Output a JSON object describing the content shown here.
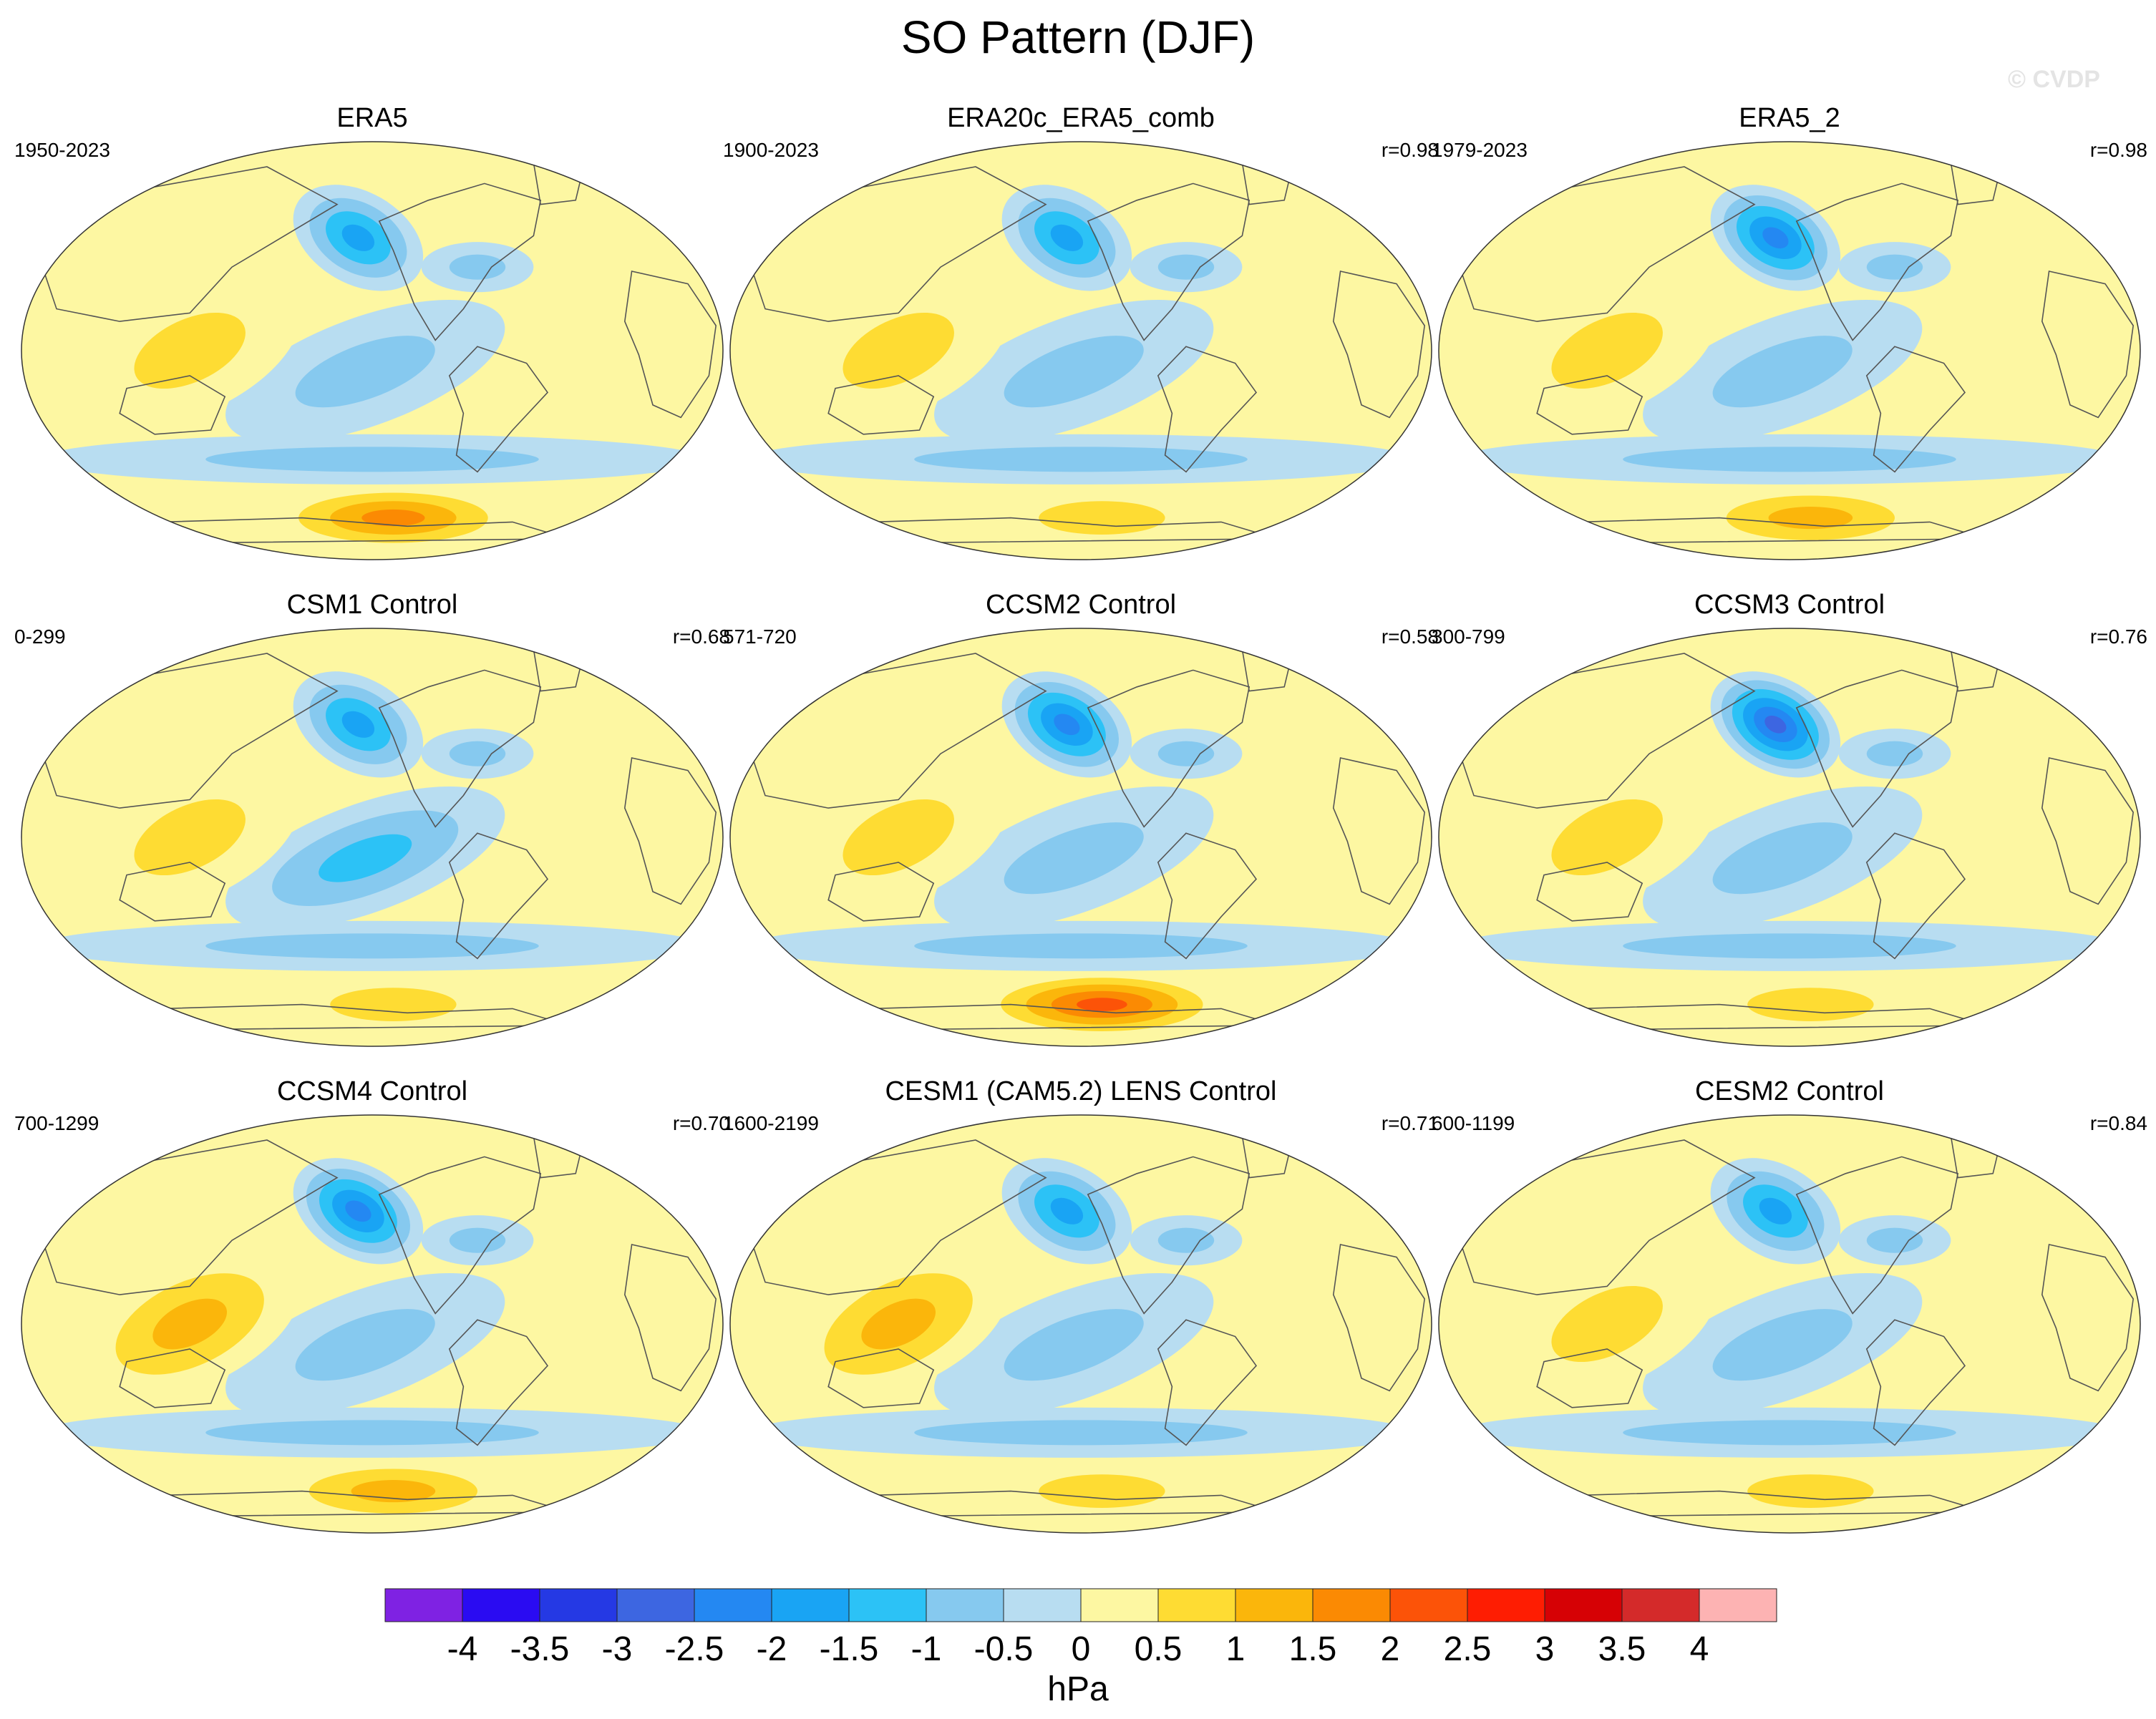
{
  "title": "SO Pattern (DJF)",
  "copyright": "© CVDP",
  "panels": [
    {
      "title": "ERA5",
      "period": "1950-2023",
      "r": "",
      "anomaly": {
        "north_pacific": -2.0,
        "eq_pacific": -1.0,
        "maritime": 1.0,
        "antarctic": 2.0,
        "atlantic": 0.5
      }
    },
    {
      "title": "ERA20c_ERA5_comb",
      "period": "1900-2023",
      "r": "r=0.98",
      "anomaly": {
        "north_pacific": -2.0,
        "eq_pacific": -1.0,
        "maritime": 1.0,
        "antarctic": 1.0,
        "atlantic": 0.5
      }
    },
    {
      "title": "ERA5_2",
      "period": "1979-2023",
      "r": "r=0.98",
      "anomaly": {
        "north_pacific": -2.5,
        "eq_pacific": -1.0,
        "maritime": 1.0,
        "antarctic": 1.5,
        "atlantic": 0.5
      }
    },
    {
      "title": "CSM1 Control",
      "period": "0-299",
      "r": "r=0.68",
      "anomaly": {
        "north_pacific": -2.0,
        "eq_pacific": -1.5,
        "maritime": 1.0,
        "antarctic": 1.0,
        "atlantic": 0.5
      }
    },
    {
      "title": "CCSM2 Control",
      "period": "571-720",
      "r": "r=0.58",
      "anomaly": {
        "north_pacific": -2.5,
        "eq_pacific": -1.0,
        "maritime": 1.0,
        "antarctic": 2.5,
        "atlantic": 0.5
      }
    },
    {
      "title": "CCSM3 Control",
      "period": "300-799",
      "r": "r=0.76",
      "anomaly": {
        "north_pacific": -3.0,
        "eq_pacific": -1.0,
        "maritime": 1.0,
        "antarctic": 1.0,
        "atlantic": 0.5
      }
    },
    {
      "title": "CCSM4 Control",
      "period": "700-1299",
      "r": "r=0.70",
      "anomaly": {
        "north_pacific": -2.5,
        "eq_pacific": -1.0,
        "maritime": 1.5,
        "antarctic": 1.5,
        "atlantic": 0.5
      }
    },
    {
      "title": "CESM1 (CAM5.2) LENS Control",
      "period": "1600-2199",
      "r": "r=0.71",
      "anomaly": {
        "north_pacific": -2.0,
        "eq_pacific": -1.0,
        "maritime": 1.5,
        "antarctic": 1.0,
        "atlantic": 0.5
      }
    },
    {
      "title": "CESM2 Control",
      "period": "600-1199",
      "r": "r=0.84",
      "anomaly": {
        "north_pacific": -2.0,
        "eq_pacific": -1.0,
        "maritime": 1.0,
        "antarctic": 1.0,
        "atlantic": 0.5
      }
    }
  ],
  "colorbar": {
    "unit": "hPa",
    "labels": [
      "-4",
      "-3.5",
      "-3",
      "-2.5",
      "-2",
      "-1.5",
      "-1",
      "-0.5",
      "0",
      "0.5",
      "1",
      "1.5",
      "2",
      "2.5",
      "3",
      "3.5",
      "4"
    ],
    "colors": [
      "#7f22e3",
      "#2a0bf2",
      "#2539e4",
      "#3d66e1",
      "#2488f2",
      "#19a4f4",
      "#2cc2f6",
      "#86c9ef",
      "#b8ddf1",
      "#fdf7a2",
      "#fedc33",
      "#fbb60b",
      "#fb8a03",
      "#fc5308",
      "#fe1d02",
      "#d60105",
      "#d42a2a",
      "#fdb3b3"
    ]
  }
}
